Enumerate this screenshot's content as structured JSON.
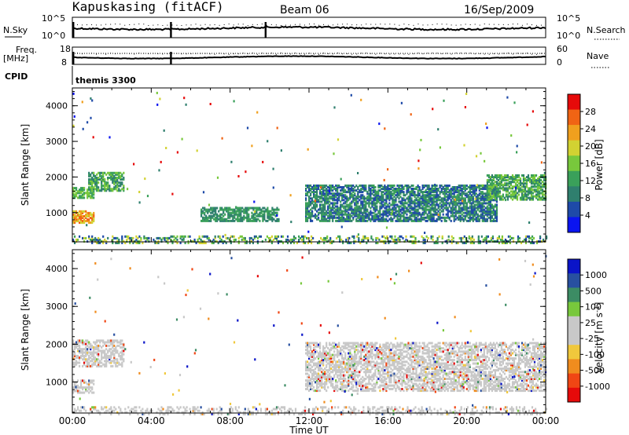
{
  "header": {
    "station": "Kapuskasing (fitACF)",
    "beam": "Beam 06",
    "date": "16/Sep/2009"
  },
  "strip_panels": {
    "nsky": {
      "label": "N.Sky",
      "left_ticks": [
        "10^5",
        "10^0"
      ],
      "right_ticks": [
        "10^5",
        "10^0"
      ],
      "right_label": "N.Search"
    },
    "freq": {
      "label_line1": "Freq.",
      "label_line2": "[MHz]",
      "left_ticks": [
        "18",
        "8"
      ],
      "right_ticks": [
        "60",
        "0"
      ],
      "right_label": "Nave"
    },
    "cpid": {
      "label": "CPID",
      "value": "themis 3300"
    }
  },
  "colors": {
    "power_scale": [
      "#0a14f0",
      "#1e4aa8",
      "#2f7f6e",
      "#3aa05a",
      "#78c83c",
      "#d2d232",
      "#f0a01e",
      "#f06414",
      "#e60a0a"
    ],
    "velocity_scale": [
      "#e60a0a",
      "#f04614",
      "#f08c1e",
      "#f0c83c",
      "#c8c8c8",
      "#c8c8c8",
      "#78c83c",
      "#3c8c64",
      "#2850a0",
      "#0a14c8"
    ]
  },
  "chart_data": [
    {
      "type": "heatmap",
      "name": "power",
      "ylabel": "Slant Range [km]",
      "xlim": [
        "00:00",
        "24:00"
      ],
      "ylim": [
        180,
        4500
      ],
      "yticks": [
        1000,
        2000,
        3000,
        4000
      ],
      "colorbar": {
        "label": "Power [dB]",
        "ticks": [
          "4",
          "8",
          "12",
          "16",
          "20",
          "24",
          "28"
        ],
        "range": [
          0,
          32
        ]
      },
      "echo_regions": [
        {
          "start_ut": 0.0,
          "end_ut": 1.1,
          "range_km": [
            1450,
            1750
          ],
          "level": "12-20 dB"
        },
        {
          "start_ut": 0.0,
          "end_ut": 1.1,
          "range_km": [
            750,
            1100
          ],
          "level": "20-32 dB"
        },
        {
          "start_ut": 0.8,
          "end_ut": 2.6,
          "range_km": [
            1650,
            2150
          ],
          "level": "8-20 dB"
        },
        {
          "start_ut": 6.5,
          "end_ut": 10.5,
          "range_km": [
            800,
            1200
          ],
          "level": "8-16 dB"
        },
        {
          "start_ut": 11.8,
          "end_ut": 21.5,
          "range_km": [
            800,
            1800
          ],
          "level": "4-16 dB"
        },
        {
          "start_ut": 21.0,
          "end_ut": 24.0,
          "range_km": [
            1400,
            2100
          ],
          "level": "8-20 dB"
        },
        {
          "start_ut": 0.0,
          "end_ut": 24.0,
          "range_km": [
            180,
            400
          ],
          "level": "ground scatter, 4-24 dB"
        }
      ]
    },
    {
      "type": "heatmap",
      "name": "velocity",
      "ylabel": "Slant Range [km]",
      "xlabel": "Time UT",
      "xlim": [
        "00:00",
        "24:00"
      ],
      "ylim": [
        180,
        4500
      ],
      "xticks": [
        "00:00",
        "04:00",
        "08:00",
        "12:00",
        "16:00",
        "20:00",
        "00:00"
      ],
      "yticks": [
        1000,
        2000,
        3000,
        4000
      ],
      "colorbar": {
        "label": "Velocity [m s^-1]",
        "ticks": [
          "1000",
          "500",
          "100",
          "25",
          "-25",
          "-100",
          "-500",
          "-1000"
        ]
      },
      "echo_regions": [
        {
          "start_ut": 0.0,
          "end_ut": 2.6,
          "range_km": [
            1450,
            2150
          ],
          "velocity": "-25 to 25 m/s (grey)"
        },
        {
          "start_ut": 0.0,
          "end_ut": 1.1,
          "range_km": [
            750,
            1100
          ],
          "velocity": "mixed, mostly -25 to 25 m/s"
        },
        {
          "start_ut": 11.8,
          "end_ut": 24.0,
          "range_km": [
            800,
            2100
          ],
          "velocity": "-25 to 25 m/s (grey)"
        },
        {
          "start_ut": 0.0,
          "end_ut": 24.0,
          "range_km": [
            180,
            400
          ],
          "velocity": "-25 to 25 m/s (grey)"
        }
      ]
    }
  ]
}
